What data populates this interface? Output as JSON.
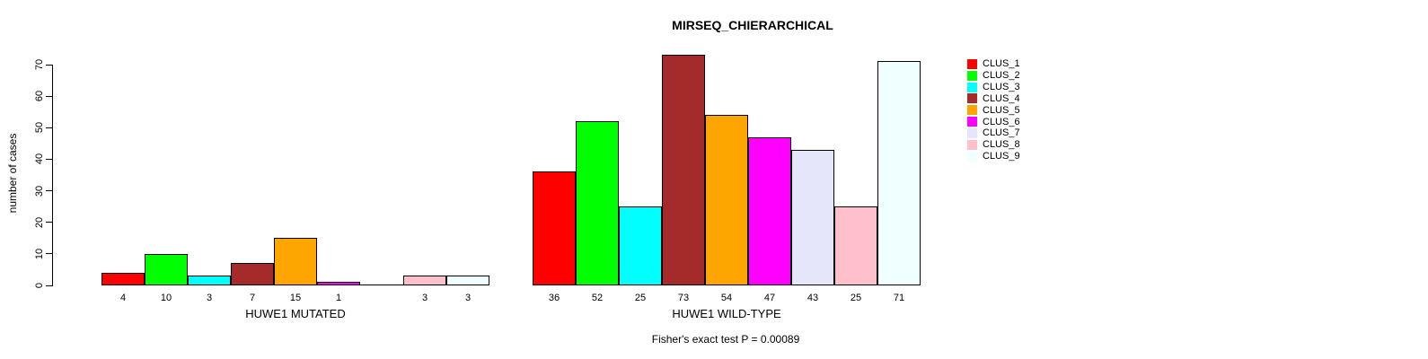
{
  "title": "MIRSEQ_CHIERARCHICAL",
  "y_axis": {
    "label": "number of cases",
    "ticks": [
      0,
      10,
      20,
      30,
      40,
      50,
      60,
      70
    ]
  },
  "footer": "Fisher's exact test P = 0.00089",
  "legend": {
    "items": [
      {
        "label": "CLUS_1",
        "color": "#FF0000"
      },
      {
        "label": "CLUS_2",
        "color": "#00FF00"
      },
      {
        "label": "CLUS_3",
        "color": "#00FFFF"
      },
      {
        "label": "CLUS_4",
        "color": "#A52A2A"
      },
      {
        "label": "CLUS_5",
        "color": "#FFA500"
      },
      {
        "label": "CLUS_6",
        "color": "#FF00FF"
      },
      {
        "label": "CLUS_7",
        "color": "#E6E6FA"
      },
      {
        "label": "CLUS_8",
        "color": "#FFC0CB"
      },
      {
        "label": "CLUS_9",
        "color": "#F0FFFF"
      }
    ]
  },
  "chart_data": {
    "type": "bar",
    "title": "MIRSEQ_CHIERARCHICAL",
    "ylabel": "number of cases",
    "ylim": [
      0,
      70
    ],
    "yticks": [
      0,
      10,
      20,
      30,
      40,
      50,
      60,
      70
    ],
    "grid": false,
    "legend_position": "right",
    "value_labels_shown": true,
    "zero_value_labels_hidden": true,
    "categories": [
      "HUWE1 MUTATED",
      "HUWE1 WILD-TYPE"
    ],
    "series": [
      {
        "name": "CLUS_1",
        "color": "#FF0000",
        "values": [
          4,
          36
        ]
      },
      {
        "name": "CLUS_2",
        "color": "#00FF00",
        "values": [
          10,
          52
        ]
      },
      {
        "name": "CLUS_3",
        "color": "#00FFFF",
        "values": [
          3,
          25
        ]
      },
      {
        "name": "CLUS_4",
        "color": "#A52A2A",
        "values": [
          7,
          73
        ]
      },
      {
        "name": "CLUS_5",
        "color": "#FFA500",
        "values": [
          15,
          54
        ]
      },
      {
        "name": "CLUS_6",
        "color": "#FF00FF",
        "values": [
          1,
          47
        ]
      },
      {
        "name": "CLUS_7",
        "color": "#E6E6FA",
        "values": [
          0,
          43
        ]
      },
      {
        "name": "CLUS_8",
        "color": "#FFC0CB",
        "values": [
          3,
          25
        ]
      },
      {
        "name": "CLUS_9",
        "color": "#F0FFFF",
        "values": [
          3,
          71
        ]
      }
    ],
    "annotation": "Fisher's exact test P = 0.00089"
  }
}
